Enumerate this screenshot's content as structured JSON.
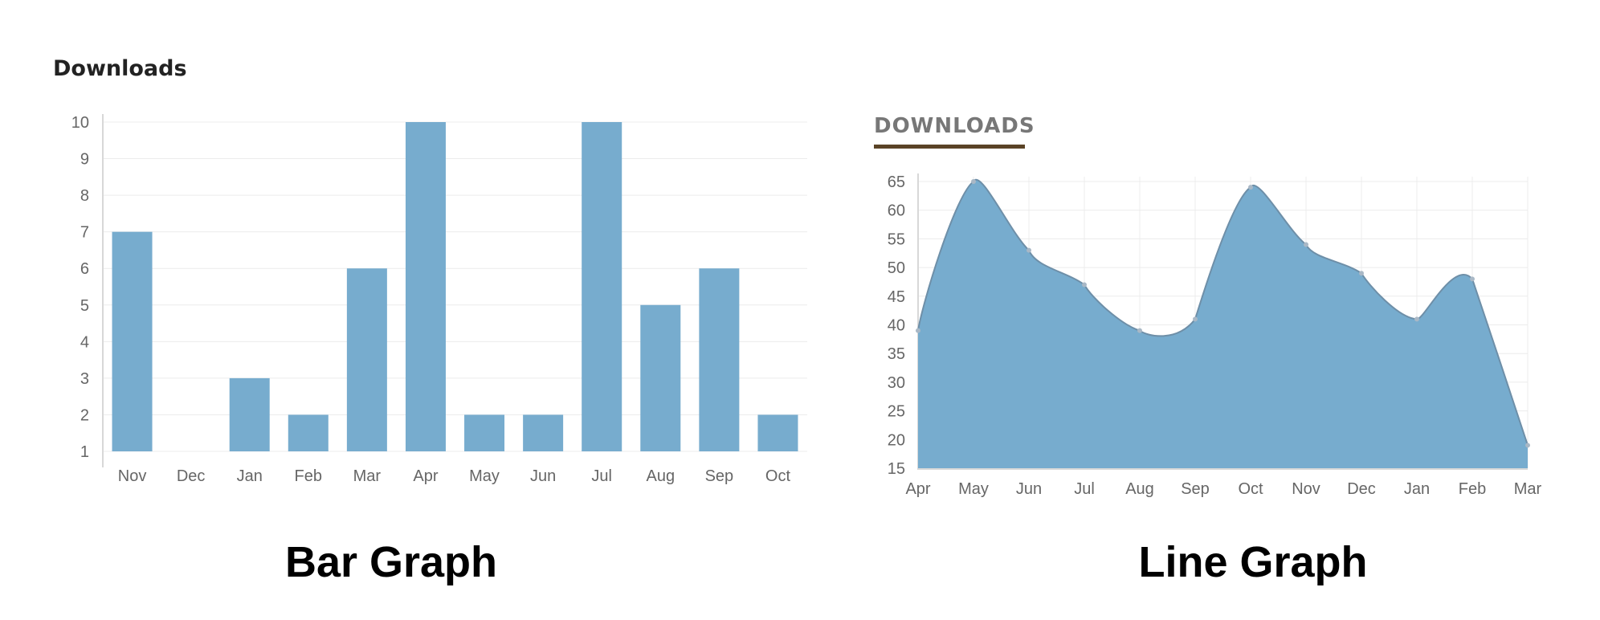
{
  "chart_data": [
    {
      "type": "bar",
      "title": "Downloads",
      "caption": "Bar Graph",
      "categories": [
        "Nov",
        "Dec",
        "Jan",
        "Feb",
        "Mar",
        "Apr",
        "May",
        "Jun",
        "Jul",
        "Aug",
        "Sep",
        "Oct"
      ],
      "values": [
        7,
        1,
        3,
        2,
        6,
        10,
        2,
        2,
        10,
        5,
        6,
        2
      ],
      "ylim": [
        1,
        10
      ],
      "yticks": [
        "1",
        "2",
        "3",
        "4",
        "5",
        "6",
        "7",
        "8",
        "9",
        "10"
      ],
      "xlabel": "",
      "ylabel": "",
      "grid": true,
      "color": "#77acce"
    },
    {
      "type": "area",
      "title": "DOWNLOADS",
      "caption": "Line Graph",
      "categories": [
        "Apr",
        "May",
        "Jun",
        "Jul",
        "Aug",
        "Sep",
        "Oct",
        "Nov",
        "Dec",
        "Jan",
        "Feb",
        "Mar"
      ],
      "values": [
        39,
        65,
        53,
        47,
        39,
        41,
        64,
        54,
        49,
        41,
        48,
        19
      ],
      "ylim": [
        15,
        65
      ],
      "yticks": [
        "15",
        "20",
        "25",
        "30",
        "35",
        "40",
        "45",
        "50",
        "55",
        "60",
        "65"
      ],
      "xlabel": "",
      "ylabel": "",
      "grid": true,
      "color": "#77acce",
      "underline_color": "#5a4326"
    }
  ]
}
